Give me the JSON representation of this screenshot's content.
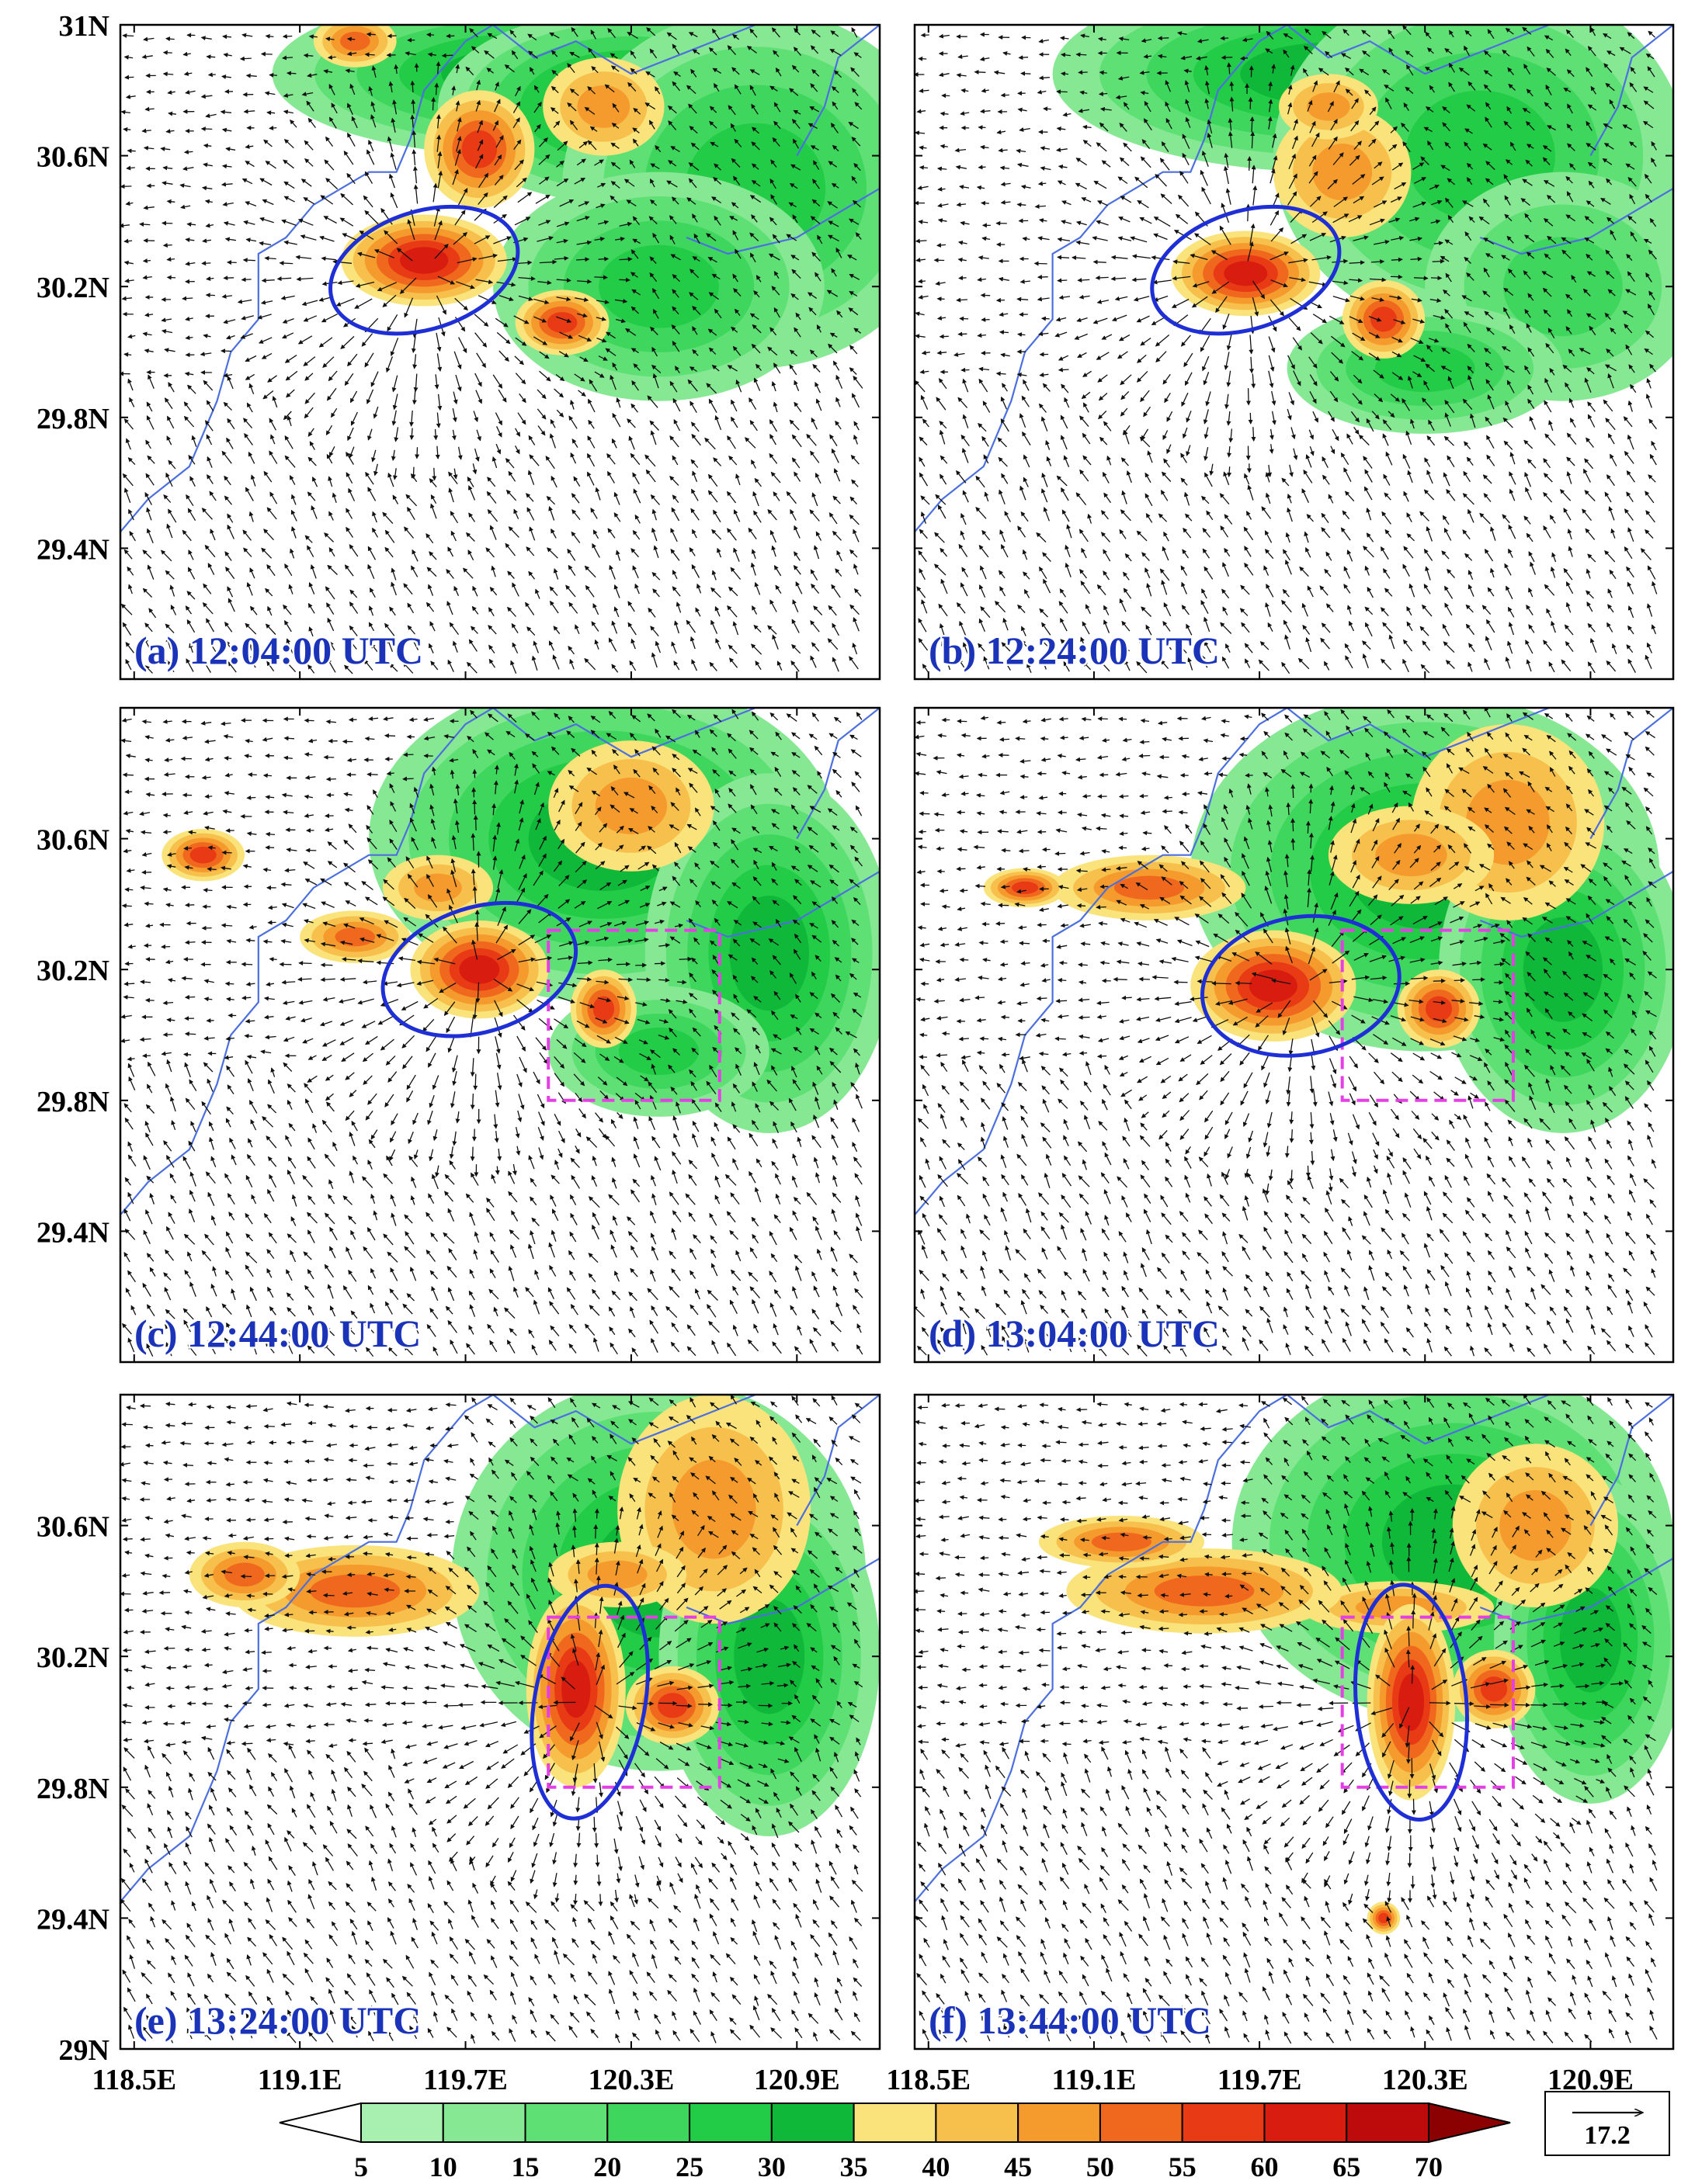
{
  "chart_data": {
    "type": "heatmap",
    "description_of_fields": "reflectivity shading with wind vectors, six panels",
    "y_ticks": [
      "31N",
      "30.6N",
      "30.2N",
      "29.8N",
      "29.4N",
      "29N"
    ],
    "y_tick_values": [
      31.0,
      30.6,
      30.2,
      29.8,
      29.4,
      29.0
    ],
    "x_ticks": [
      "118.5E",
      "119.1E",
      "119.7E",
      "120.3E",
      "120.9E"
    ],
    "x_tick_values": [
      118.5,
      119.1,
      119.7,
      120.3,
      120.9
    ],
    "xlim": [
      118.45,
      121.2
    ],
    "ylim": [
      29.0,
      31.0
    ],
    "colorbar": {
      "levels": [
        5,
        10,
        15,
        20,
        25,
        30,
        35,
        40,
        45,
        50,
        55,
        60,
        65,
        70
      ],
      "level_labels": [
        "5",
        "10",
        "15",
        "20",
        "25",
        "30",
        "35",
        "40",
        "45",
        "50",
        "55",
        "60",
        "65",
        "70"
      ],
      "colors": [
        "#ffffff",
        "#a8f0b0",
        "#86e893",
        "#5ee075",
        "#3fd65d",
        "#22cc47",
        "#10b83a",
        "#f9e37a",
        "#f7c04d",
        "#f59a2c",
        "#f0681e",
        "#e83a14",
        "#d81c10",
        "#bd0a0a",
        "#8b0000"
      ]
    },
    "reference_vector": {
      "label": "17.2"
    },
    "panels": [
      {
        "label": "(a) 12:04:00 UTC",
        "ellipse": {
          "lon": 119.55,
          "lat": 30.25,
          "rx_deg": 0.35,
          "ry_deg": 0.18,
          "rot": -18
        },
        "box": null
      },
      {
        "label": "(b) 12:24:00 UTC",
        "ellipse": {
          "lon": 119.65,
          "lat": 30.25,
          "rx_deg": 0.35,
          "ry_deg": 0.18,
          "rot": -18
        },
        "box": null
      },
      {
        "label": "(c) 12:44:00 UTC",
        "ellipse": {
          "lon": 119.75,
          "lat": 30.2,
          "rx_deg": 0.36,
          "ry_deg": 0.19,
          "rot": -18
        },
        "box": {
          "lon": [
            120.0,
            120.62
          ],
          "lat": [
            29.8,
            30.32
          ]
        }
      },
      {
        "label": "(d) 13:04:00 UTC",
        "ellipse": {
          "lon": 119.85,
          "lat": 30.15,
          "rx_deg": 0.36,
          "ry_deg": 0.21,
          "rot": -10
        },
        "box": {
          "lon": [
            120.0,
            120.62
          ],
          "lat": [
            29.8,
            30.32
          ]
        }
      },
      {
        "label": "(e) 13:24:00 UTC",
        "ellipse": {
          "lon": 120.15,
          "lat": 30.06,
          "rx_deg": 0.2,
          "ry_deg": 0.36,
          "rot": 10
        },
        "box": {
          "lon": [
            120.0,
            120.62
          ],
          "lat": [
            29.8,
            30.32
          ]
        }
      },
      {
        "label": "(f) 13:44:00 UTC",
        "ellipse": {
          "lon": 120.25,
          "lat": 30.06,
          "rx_deg": 0.2,
          "ry_deg": 0.36,
          "rot": -5
        },
        "box": {
          "lon": [
            120.0,
            120.62
          ],
          "lat": [
            29.8,
            30.32
          ]
        }
      }
    ]
  },
  "colors": {
    "panel_label": "#1a33b8",
    "ellipse": "#1f2fd6",
    "box": "#e63ee6",
    "coast": "#4c6fe0",
    "vector": "#111111"
  }
}
